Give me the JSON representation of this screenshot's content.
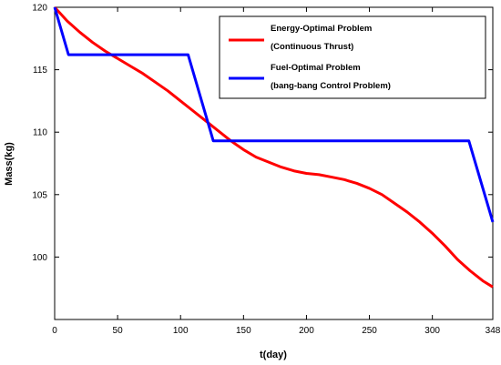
{
  "chart_data": {
    "type": "line",
    "title": "",
    "xlabel": "t(day)",
    "ylabel": "Mass(kg)",
    "xlim": [
      0,
      348
    ],
    "ylim": [
      95,
      120
    ],
    "x_ticks": [
      0,
      50,
      100,
      150,
      200,
      250,
      300,
      348
    ],
    "y_ticks": [
      100,
      105,
      110,
      115,
      120
    ],
    "grid": false,
    "legend_position": "top-right",
    "series": [
      {
        "name": "Energy-Optimal Problem",
        "name_line2": "(Continuous Thrust)",
        "color": "#ff0000",
        "x": [
          0,
          10,
          20,
          30,
          40,
          50,
          60,
          70,
          80,
          90,
          100,
          110,
          120,
          130,
          140,
          150,
          160,
          170,
          180,
          190,
          200,
          210,
          220,
          230,
          240,
          250,
          260,
          270,
          280,
          290,
          300,
          310,
          320,
          330,
          340,
          348
        ],
        "y": [
          120,
          118.9,
          118.0,
          117.2,
          116.5,
          115.9,
          115.3,
          114.7,
          114.0,
          113.3,
          112.5,
          111.7,
          110.9,
          110.1,
          109.3,
          108.6,
          108.0,
          107.6,
          107.2,
          106.9,
          106.7,
          106.6,
          106.4,
          106.2,
          105.9,
          105.5,
          105.0,
          104.3,
          103.6,
          102.8,
          101.9,
          100.9,
          99.8,
          98.9,
          98.1,
          97.6
        ]
      },
      {
        "name": "Fuel-Optimal Problem",
        "name_line2": "(bang-bang Control Problem)",
        "color": "#0000ff",
        "x": [
          0,
          11,
          106,
          126,
          329,
          348
        ],
        "y": [
          120,
          116.2,
          116.2,
          109.3,
          109.3,
          102.8
        ]
      }
    ]
  }
}
